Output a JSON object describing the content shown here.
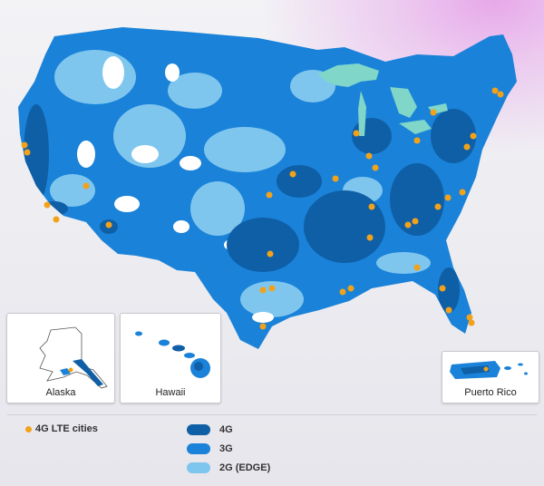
{
  "insets": {
    "alaska": "Alaska",
    "hawaii": "Hawaii",
    "puerto_rico": "Puerto Rico"
  },
  "legend": {
    "lte_cities": "4G LTE cities",
    "tier_4g": "4G",
    "tier_3g": "3G",
    "tier_2g": "2G (EDGE)"
  },
  "colors": {
    "lte_city_dot": "#f2a21a",
    "coverage_4g": "#0f5fa6",
    "coverage_3g": "#1a82d8",
    "coverage_2g": "#7ec6ee",
    "great_lakes": "#7fd6c9",
    "no_coverage": "#ffffff"
  }
}
